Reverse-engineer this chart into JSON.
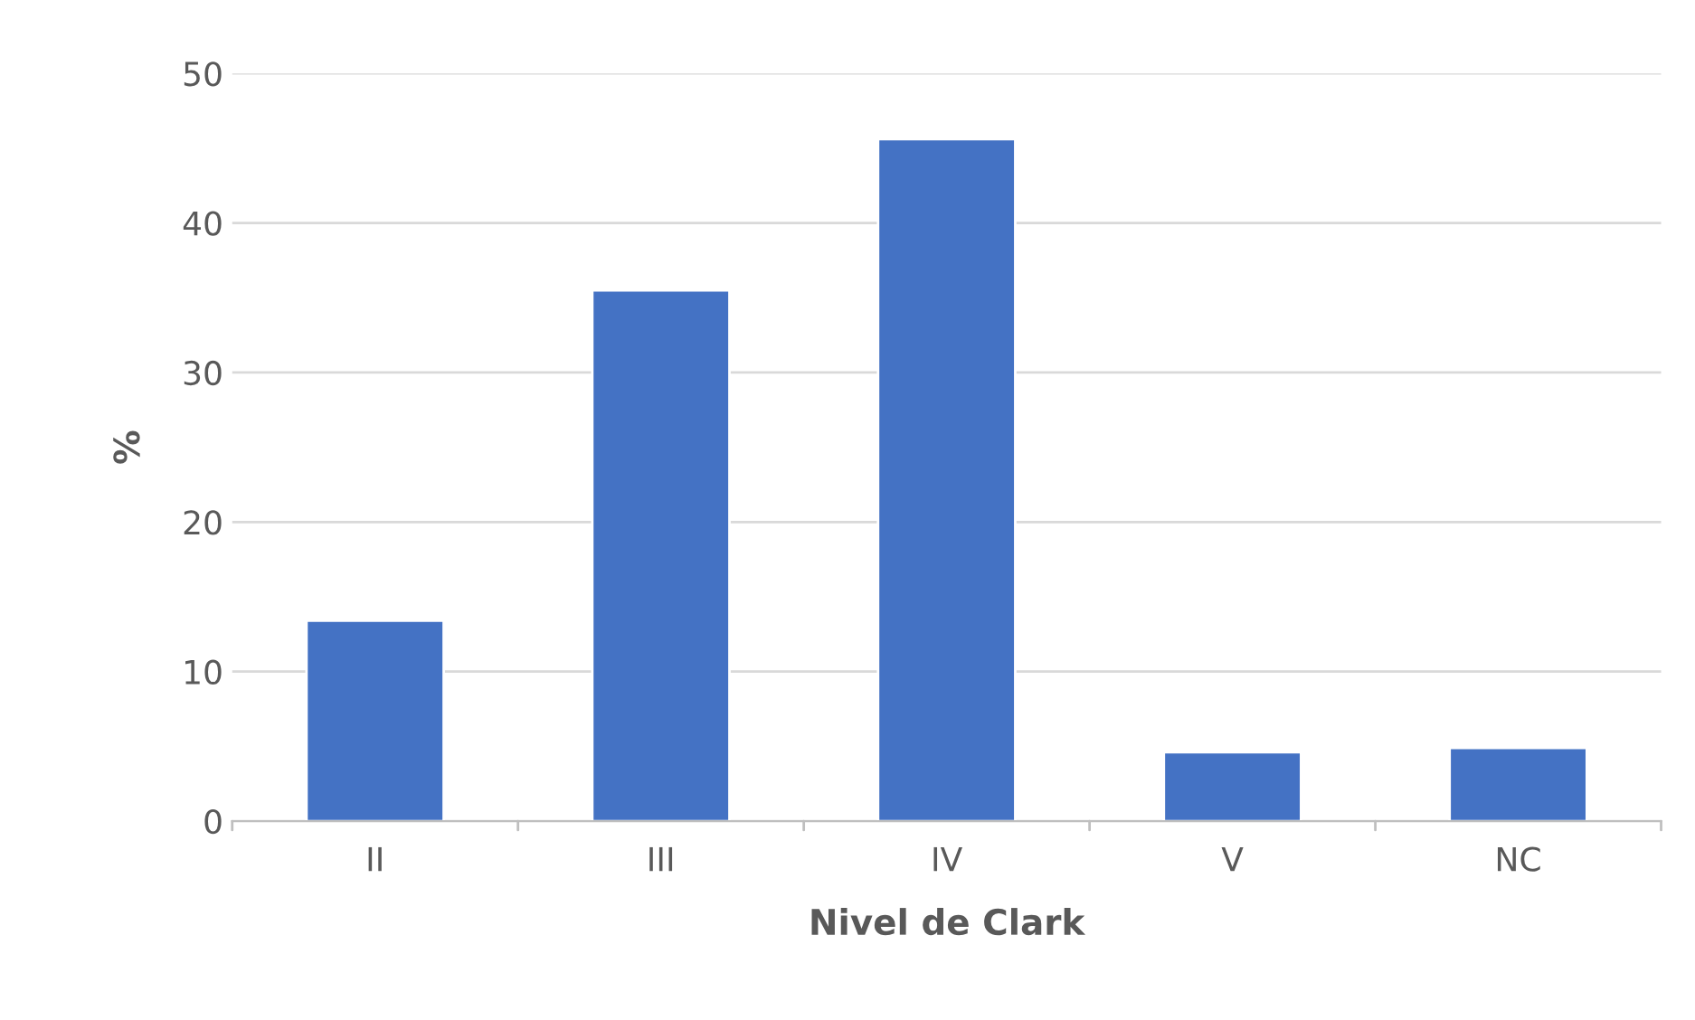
{
  "chart_data": {
    "type": "bar",
    "xlabel": "Nivel de Clark",
    "ylabel": "%",
    "categories": [
      "II",
      "III",
      "IV",
      "V",
      "NC"
    ],
    "values": [
      13.4,
      35.5,
      45.6,
      4.6,
      4.9
    ],
    "color": "#4472c4",
    "ylim": [
      0,
      50
    ],
    "yticks": [
      0,
      10,
      20,
      30,
      40,
      50
    ],
    "grid": "y"
  }
}
